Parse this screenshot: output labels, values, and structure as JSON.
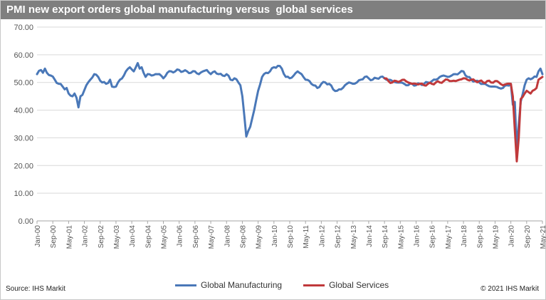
{
  "header": {
    "title": "PMI new export orders global manufacturing versus  global services"
  },
  "footer": {
    "source": "Source: IHS Markit",
    "copyright": "© 2021 IHS Markit"
  },
  "colors": {
    "manufacturing": "#4a78b8",
    "services": "#c0393b",
    "grid": "#d9d9d9",
    "axis_text": "#555555"
  },
  "chart_data": {
    "type": "line",
    "title": "PMI new export orders global manufacturing versus  global services",
    "xlabel": "",
    "ylabel": "",
    "ylim": [
      0,
      70
    ],
    "y_ticks": [
      "0.00",
      "10.00",
      "20.00",
      "30.00",
      "40.00",
      "50.00",
      "60.00",
      "70.00"
    ],
    "x_tick_labels": [
      "Jan-00",
      "Sep-00",
      "May-01",
      "Jan-02",
      "Sep-02",
      "May-03",
      "Jan-04",
      "Sep-04",
      "May-05",
      "Jan-06",
      "Sep-06",
      "May-07",
      "Jan-08",
      "Sep-08",
      "May-09",
      "Jan-10",
      "Sep-10",
      "May-11",
      "Jan-12",
      "Sep-12",
      "May-13",
      "Jan-14",
      "Sep-14",
      "May-15",
      "Jan-16",
      "Sep-16",
      "May-17",
      "Jan-18",
      "Sep-18",
      "May-19",
      "Jan-20",
      "Sep-20",
      "May-21"
    ],
    "grid": true,
    "legend_position": "bottom",
    "series": [
      {
        "name": "Global Manufacturing",
        "x_start": "Jan-00",
        "frequency": "monthly",
        "anchors": [
          [
            "Jan-00",
            53
          ],
          [
            "Mar-00",
            54.5
          ],
          [
            "Apr-00",
            53.5
          ],
          [
            "May-00",
            55
          ],
          [
            "Jun-00",
            53.5
          ],
          [
            "Aug-00",
            52.5
          ],
          [
            "Oct-00",
            51
          ],
          [
            "Dec-00",
            49.5
          ],
          [
            "Feb-01",
            48.5
          ],
          [
            "Mar-01",
            47.5
          ],
          [
            "Apr-01",
            48
          ],
          [
            "May-01",
            46
          ],
          [
            "Jul-01",
            45
          ],
          [
            "Aug-01",
            46
          ],
          [
            "Sep-01",
            44.5
          ],
          [
            "Oct-01",
            41
          ],
          [
            "Nov-01",
            45
          ],
          [
            "Dec-01",
            45.5
          ],
          [
            "Feb-02",
            49
          ],
          [
            "Apr-02",
            51
          ],
          [
            "Jun-02",
            53
          ],
          [
            "Aug-02",
            52
          ],
          [
            "Oct-02",
            50
          ],
          [
            "Dec-02",
            49.5
          ],
          [
            "Feb-03",
            51
          ],
          [
            "Mar-03",
            48.5
          ],
          [
            "May-03",
            48.5
          ],
          [
            "Jul-03",
            51
          ],
          [
            "Sep-03",
            52.5
          ],
          [
            "Oct-03",
            54
          ],
          [
            "Dec-03",
            55.5
          ],
          [
            "Feb-04",
            54
          ],
          [
            "Apr-04",
            57
          ],
          [
            "May-04",
            55
          ],
          [
            "Jun-04",
            55.5
          ],
          [
            "Aug-04",
            52
          ],
          [
            "Sep-04",
            53
          ],
          [
            "Nov-04",
            52.5
          ],
          [
            "Jan-05",
            53
          ],
          [
            "Mar-05",
            53
          ],
          [
            "May-05",
            51.5
          ],
          [
            "Jul-05",
            53.5
          ],
          [
            "Sep-05",
            54
          ],
          [
            "Nov-05",
            54
          ],
          [
            "Jan-06",
            54.5
          ],
          [
            "Mar-06",
            54
          ],
          [
            "May-06",
            54
          ],
          [
            "Jul-06",
            53.5
          ],
          [
            "Sep-06",
            54
          ],
          [
            "Nov-06",
            53
          ],
          [
            "Jan-07",
            54
          ],
          [
            "Mar-07",
            54.5
          ],
          [
            "May-07",
            53
          ],
          [
            "Jul-07",
            54
          ],
          [
            "Sep-07",
            53
          ],
          [
            "Nov-07",
            52.5
          ],
          [
            "Jan-08",
            53
          ],
          [
            "Mar-08",
            51
          ],
          [
            "May-08",
            51.5
          ],
          [
            "Jul-08",
            50
          ],
          [
            "Aug-08",
            49
          ],
          [
            "Sep-08",
            45
          ],
          [
            "Oct-08",
            38
          ],
          [
            "Nov-08",
            30.5
          ],
          [
            "Dec-08",
            32.5
          ],
          [
            "Jan-09",
            34
          ],
          [
            "Mar-09",
            40
          ],
          [
            "May-09",
            47
          ],
          [
            "Jul-09",
            52
          ],
          [
            "Sep-09",
            53.5
          ],
          [
            "Nov-09",
            54
          ],
          [
            "Jan-10",
            55.5
          ],
          [
            "Mar-10",
            56
          ],
          [
            "May-10",
            55
          ],
          [
            "Jul-10",
            52
          ],
          [
            "Sep-10",
            51.5
          ],
          [
            "Nov-10",
            52.5
          ],
          [
            "Jan-11",
            54
          ],
          [
            "Mar-11",
            53
          ],
          [
            "May-11",
            51
          ],
          [
            "Jul-11",
            50.5
          ],
          [
            "Sep-11",
            49
          ],
          [
            "Nov-11",
            48
          ],
          [
            "Jan-12",
            49.5
          ],
          [
            "Mar-12",
            50
          ],
          [
            "May-12",
            49.5
          ],
          [
            "Jul-12",
            47.5
          ],
          [
            "Sep-12",
            47
          ],
          [
            "Nov-12",
            47.5
          ],
          [
            "Jan-13",
            49
          ],
          [
            "Mar-13",
            50
          ],
          [
            "May-13",
            49.5
          ],
          [
            "Jul-13",
            50
          ],
          [
            "Sep-13",
            51
          ],
          [
            "Nov-13",
            52
          ],
          [
            "Jan-14",
            51.5
          ],
          [
            "Mar-14",
            51
          ],
          [
            "May-14",
            51.5
          ],
          [
            "Jul-14",
            52
          ],
          [
            "Sep-14",
            51.5
          ],
          [
            "Nov-14",
            51
          ],
          [
            "Jan-15",
            50.5
          ],
          [
            "Mar-15",
            50
          ],
          [
            "May-15",
            50
          ],
          [
            "Jul-15",
            49.5
          ],
          [
            "Sep-15",
            49
          ],
          [
            "Nov-15",
            49.5
          ],
          [
            "Jan-16",
            49
          ],
          [
            "Mar-16",
            49.5
          ],
          [
            "May-16",
            49.5
          ],
          [
            "Jul-16",
            50
          ],
          [
            "Sep-16",
            50.5
          ],
          [
            "Nov-16",
            51
          ],
          [
            "Jan-17",
            52
          ],
          [
            "Mar-17",
            52.5
          ],
          [
            "May-17",
            52
          ],
          [
            "Jul-17",
            52.5
          ],
          [
            "Sep-17",
            53
          ],
          [
            "Nov-17",
            53.5
          ],
          [
            "Jan-18",
            54
          ],
          [
            "Mar-18",
            52
          ],
          [
            "May-18",
            51
          ],
          [
            "Jul-18",
            50.5
          ],
          [
            "Sep-18",
            50
          ],
          [
            "Nov-18",
            49.5
          ],
          [
            "Jan-19",
            49
          ],
          [
            "Mar-19",
            48.5
          ],
          [
            "May-19",
            48.5
          ],
          [
            "Jul-19",
            48
          ],
          [
            "Sep-19",
            48
          ],
          [
            "Nov-19",
            49
          ],
          [
            "Jan-20",
            49.5
          ],
          [
            "Feb-20",
            42
          ],
          [
            "Mar-20",
            43
          ],
          [
            "Apr-20",
            26
          ],
          [
            "May-20",
            35
          ],
          [
            "Jun-20",
            43
          ],
          [
            "Aug-20",
            49
          ],
          [
            "Sep-20",
            51
          ],
          [
            "Oct-20",
            51.5
          ],
          [
            "Dec-20",
            51.5
          ],
          [
            "Feb-21",
            52
          ],
          [
            "Mar-21",
            54
          ],
          [
            "Apr-21",
            55
          ],
          [
            "May-21",
            53
          ]
        ]
      },
      {
        "name": "Global Services",
        "x_start": "Sep-14",
        "frequency": "monthly",
        "anchors": [
          [
            "Sep-14",
            51.5
          ],
          [
            "Nov-14",
            50.5
          ],
          [
            "Jan-15",
            50
          ],
          [
            "Mar-15",
            50.5
          ],
          [
            "May-15",
            50.5
          ],
          [
            "Jul-15",
            51
          ],
          [
            "Sep-15",
            50
          ],
          [
            "Nov-15",
            49.5
          ],
          [
            "Jan-16",
            49.5
          ],
          [
            "Mar-16",
            49.5
          ],
          [
            "May-16",
            49
          ],
          [
            "Jul-16",
            49.5
          ],
          [
            "Sep-16",
            49.5
          ],
          [
            "Nov-16",
            50
          ],
          [
            "Jan-17",
            50
          ],
          [
            "Mar-17",
            50.5
          ],
          [
            "May-17",
            51
          ],
          [
            "Jul-17",
            50.5
          ],
          [
            "Sep-17",
            50.5
          ],
          [
            "Nov-17",
            51
          ],
          [
            "Jan-18",
            51.5
          ],
          [
            "Mar-18",
            51
          ],
          [
            "May-18",
            51
          ],
          [
            "Jul-18",
            50.5
          ],
          [
            "Sep-18",
            50.5
          ],
          [
            "Nov-18",
            50
          ],
          [
            "Jan-19",
            50.5
          ],
          [
            "Mar-19",
            50
          ],
          [
            "May-19",
            50.5
          ],
          [
            "Jul-19",
            50
          ],
          [
            "Sep-19",
            49
          ],
          [
            "Nov-19",
            49.5
          ],
          [
            "Jan-20",
            49.5
          ],
          [
            "Feb-20",
            45
          ],
          [
            "Mar-20",
            33
          ],
          [
            "Apr-20",
            21.5
          ],
          [
            "May-20",
            30
          ],
          [
            "Jun-20",
            44
          ],
          [
            "Aug-20",
            46
          ],
          [
            "Sep-20",
            47
          ],
          [
            "Oct-20",
            46.5
          ],
          [
            "Nov-20",
            46
          ],
          [
            "Dec-20",
            47
          ],
          [
            "Feb-21",
            48
          ],
          [
            "Mar-21",
            51
          ],
          [
            "Apr-21",
            51.5
          ],
          [
            "May-21",
            52
          ]
        ]
      }
    ]
  }
}
